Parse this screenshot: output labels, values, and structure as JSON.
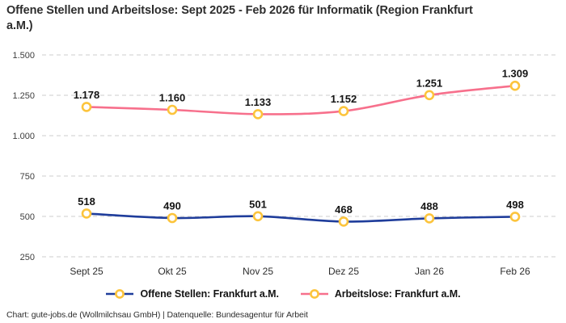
{
  "title": "Offene Stellen und Arbeitslose: Sept 2025 - Feb 2026 für Informatik (Region Frankfurt a.M.)",
  "footer": "Chart: gute-jobs.de (Wollmilchsau GmbH) | Datenquelle: Bundesagentur für Arbeit",
  "colors": {
    "offene_stellen_line": "#1F3D9B",
    "arbeitslose_line": "#F7708C",
    "marker_ring": "#FCC43C",
    "marker_fill": "#FFFFFF",
    "gridline": "#CCCCCC",
    "title_text": "#2D2D2D",
    "label_text": "#141414",
    "background": "#FFFFFF"
  },
  "chart_data": {
    "type": "line",
    "title": "Offene Stellen und Arbeitslose: Sept 2025 - Feb 2026 für Informatik (Region Frankfurt a.M.)",
    "categories": [
      "Sept 25",
      "Okt 25",
      "Nov 25",
      "Dez 25",
      "Jan 26",
      "Feb 26"
    ],
    "series": [
      {
        "name": "Offene Stellen: Frankfurt a.M.",
        "color": "#1F3D9B",
        "values": [
          518,
          490,
          501,
          468,
          488,
          498
        ],
        "labels": [
          "518",
          "490",
          "501",
          "468",
          "488",
          "498"
        ]
      },
      {
        "name": "Arbeitslose: Frankfurt a.M.",
        "color": "#F7708C",
        "values": [
          1178,
          1160,
          1133,
          1152,
          1251,
          1309
        ],
        "labels": [
          "1.178",
          "1.160",
          "1.133",
          "1.152",
          "1.251",
          "1.309"
        ]
      }
    ],
    "yticks": [
      {
        "value": 250,
        "label": "250"
      },
      {
        "value": 500,
        "label": "500"
      },
      {
        "value": 750,
        "label": "750"
      },
      {
        "value": 1000,
        "label": "1.000"
      },
      {
        "value": 1250,
        "label": "1.250"
      },
      {
        "value": 1500,
        "label": "1.500"
      }
    ],
    "ylim": [
      250,
      1500
    ],
    "grid": "horizontal-dashed",
    "legend_position": "bottom",
    "marker_style": {
      "fill": "#FFFFFF",
      "stroke": "#FCC43C"
    }
  }
}
